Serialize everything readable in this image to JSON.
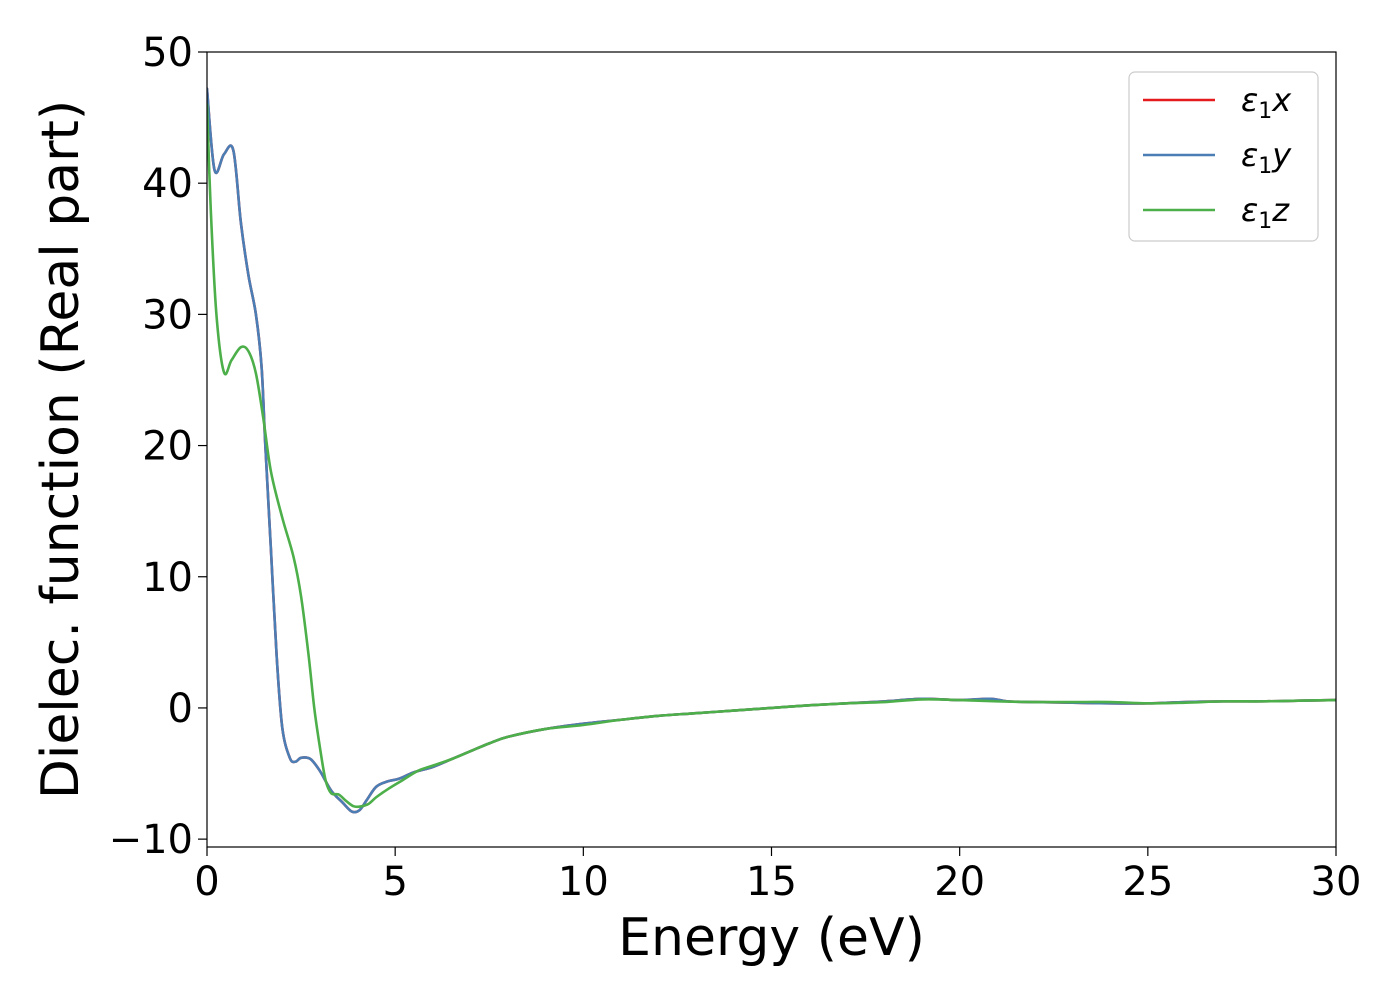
{
  "chart_data": {
    "type": "line",
    "xlabel": "Energy (eV)",
    "ylabel": "Dielec. function (Real part)",
    "xlim": [
      0,
      30
    ],
    "ylim": [
      -10.6,
      50
    ],
    "xticks": [
      0,
      5,
      10,
      15,
      20,
      25,
      30
    ],
    "yticks": [
      -10,
      0,
      10,
      20,
      30,
      40,
      50
    ],
    "xtick_labels": [
      "0",
      "5",
      "10",
      "15",
      "20",
      "25",
      "30"
    ],
    "ytick_labels": [
      "−10",
      "0",
      "10",
      "20",
      "30",
      "40",
      "50"
    ],
    "grid": false,
    "legend_position": "top-right",
    "series": [
      {
        "name": "ε₁x",
        "legend": {
          "base": "ε",
          "sub": "1",
          "var": "x"
        },
        "color": "#e41a1c",
        "x": [
          0,
          0.2,
          0.45,
          0.7,
          0.9,
          1.1,
          1.3,
          1.45,
          1.55,
          1.7,
          1.85,
          2.0,
          2.2,
          2.35,
          2.5,
          2.75,
          3.0,
          3.3,
          3.6,
          3.85,
          4.05,
          4.25,
          4.5,
          4.8,
          5.1,
          5.5,
          6.0,
          6.5,
          7.0,
          7.5,
          8.0,
          9.0,
          10.0,
          11.0,
          12.0,
          13.0,
          14.0,
          15.0,
          16.0,
          17.0,
          18.0,
          19.0,
          20.0,
          20.8,
          21.3,
          22.0,
          23.0,
          24.0,
          25.0,
          26.0,
          27.0,
          28.0,
          29.0,
          30.0
        ],
        "y": [
          47.2,
          41.0,
          42.2,
          42.5,
          37.0,
          33.0,
          30.0,
          26.0,
          20.0,
          12.0,
          4.0,
          -1.5,
          -3.8,
          -4.1,
          -3.8,
          -3.9,
          -4.8,
          -6.3,
          -7.2,
          -7.9,
          -7.8,
          -7.0,
          -6.0,
          -5.6,
          -5.4,
          -4.9,
          -4.5,
          -3.9,
          -3.3,
          -2.7,
          -2.2,
          -1.6,
          -1.2,
          -0.9,
          -0.6,
          -0.4,
          -0.2,
          0.0,
          0.2,
          0.35,
          0.5,
          0.7,
          0.6,
          0.7,
          0.5,
          0.45,
          0.4,
          0.35,
          0.35,
          0.45,
          0.5,
          0.5,
          0.55,
          0.6
        ]
      },
      {
        "name": "ε₁y",
        "legend": {
          "base": "ε",
          "sub": "1",
          "var": "y"
        },
        "color": "#4a7eb4",
        "x": [
          0,
          0.2,
          0.45,
          0.7,
          0.9,
          1.1,
          1.3,
          1.45,
          1.55,
          1.7,
          1.85,
          2.0,
          2.2,
          2.35,
          2.5,
          2.75,
          3.0,
          3.3,
          3.6,
          3.85,
          4.05,
          4.25,
          4.5,
          4.8,
          5.1,
          5.5,
          6.0,
          6.5,
          7.0,
          7.5,
          8.0,
          9.0,
          10.0,
          11.0,
          12.0,
          13.0,
          14.0,
          15.0,
          16.0,
          17.0,
          18.0,
          19.0,
          20.0,
          20.8,
          21.3,
          22.0,
          23.0,
          24.0,
          25.0,
          26.0,
          27.0,
          28.0,
          29.0,
          30.0
        ],
        "y": [
          47.2,
          41.0,
          42.2,
          42.5,
          37.0,
          33.0,
          30.0,
          26.0,
          20.0,
          12.0,
          4.0,
          -1.5,
          -3.8,
          -4.1,
          -3.8,
          -3.9,
          -4.8,
          -6.3,
          -7.2,
          -7.9,
          -7.8,
          -7.0,
          -6.0,
          -5.6,
          -5.4,
          -4.9,
          -4.5,
          -3.9,
          -3.3,
          -2.7,
          -2.2,
          -1.6,
          -1.2,
          -0.9,
          -0.6,
          -0.4,
          -0.2,
          0.0,
          0.2,
          0.35,
          0.5,
          0.7,
          0.6,
          0.7,
          0.5,
          0.45,
          0.4,
          0.35,
          0.35,
          0.45,
          0.5,
          0.5,
          0.55,
          0.6
        ]
      },
      {
        "name": "ε₁z",
        "legend": {
          "base": "ε",
          "sub": "1",
          "var": "z"
        },
        "color": "#4daf4a",
        "x": [
          0,
          0.1,
          0.25,
          0.45,
          0.65,
          0.9,
          1.1,
          1.3,
          1.5,
          1.7,
          2.0,
          2.3,
          2.5,
          2.7,
          2.85,
          3.0,
          3.15,
          3.3,
          3.5,
          3.7,
          3.9,
          4.1,
          4.3,
          4.5,
          4.8,
          5.2,
          5.6,
          6.0,
          6.5,
          7.0,
          7.5,
          8.0,
          9.0,
          10.0,
          11.0,
          12.0,
          13.0,
          14.0,
          15.0,
          16.0,
          17.0,
          18.0,
          19.0,
          20.0,
          21.0,
          22.0,
          23.0,
          24.0,
          25.0,
          26.0,
          27.0,
          28.0,
          29.0,
          30.0
        ],
        "y": [
          46.0,
          38.0,
          30.0,
          25.6,
          26.5,
          27.5,
          27.2,
          25.5,
          22.0,
          18.0,
          14.5,
          11.5,
          8.5,
          4.0,
          0.0,
          -3.0,
          -5.5,
          -6.5,
          -6.6,
          -7.1,
          -7.5,
          -7.5,
          -7.3,
          -6.8,
          -6.2,
          -5.5,
          -4.8,
          -4.4,
          -3.9,
          -3.3,
          -2.7,
          -2.2,
          -1.6,
          -1.3,
          -0.9,
          -0.6,
          -0.4,
          -0.2,
          0.0,
          0.2,
          0.35,
          0.45,
          0.65,
          0.6,
          0.5,
          0.45,
          0.45,
          0.45,
          0.35,
          0.4,
          0.5,
          0.5,
          0.55,
          0.6
        ]
      }
    ]
  }
}
